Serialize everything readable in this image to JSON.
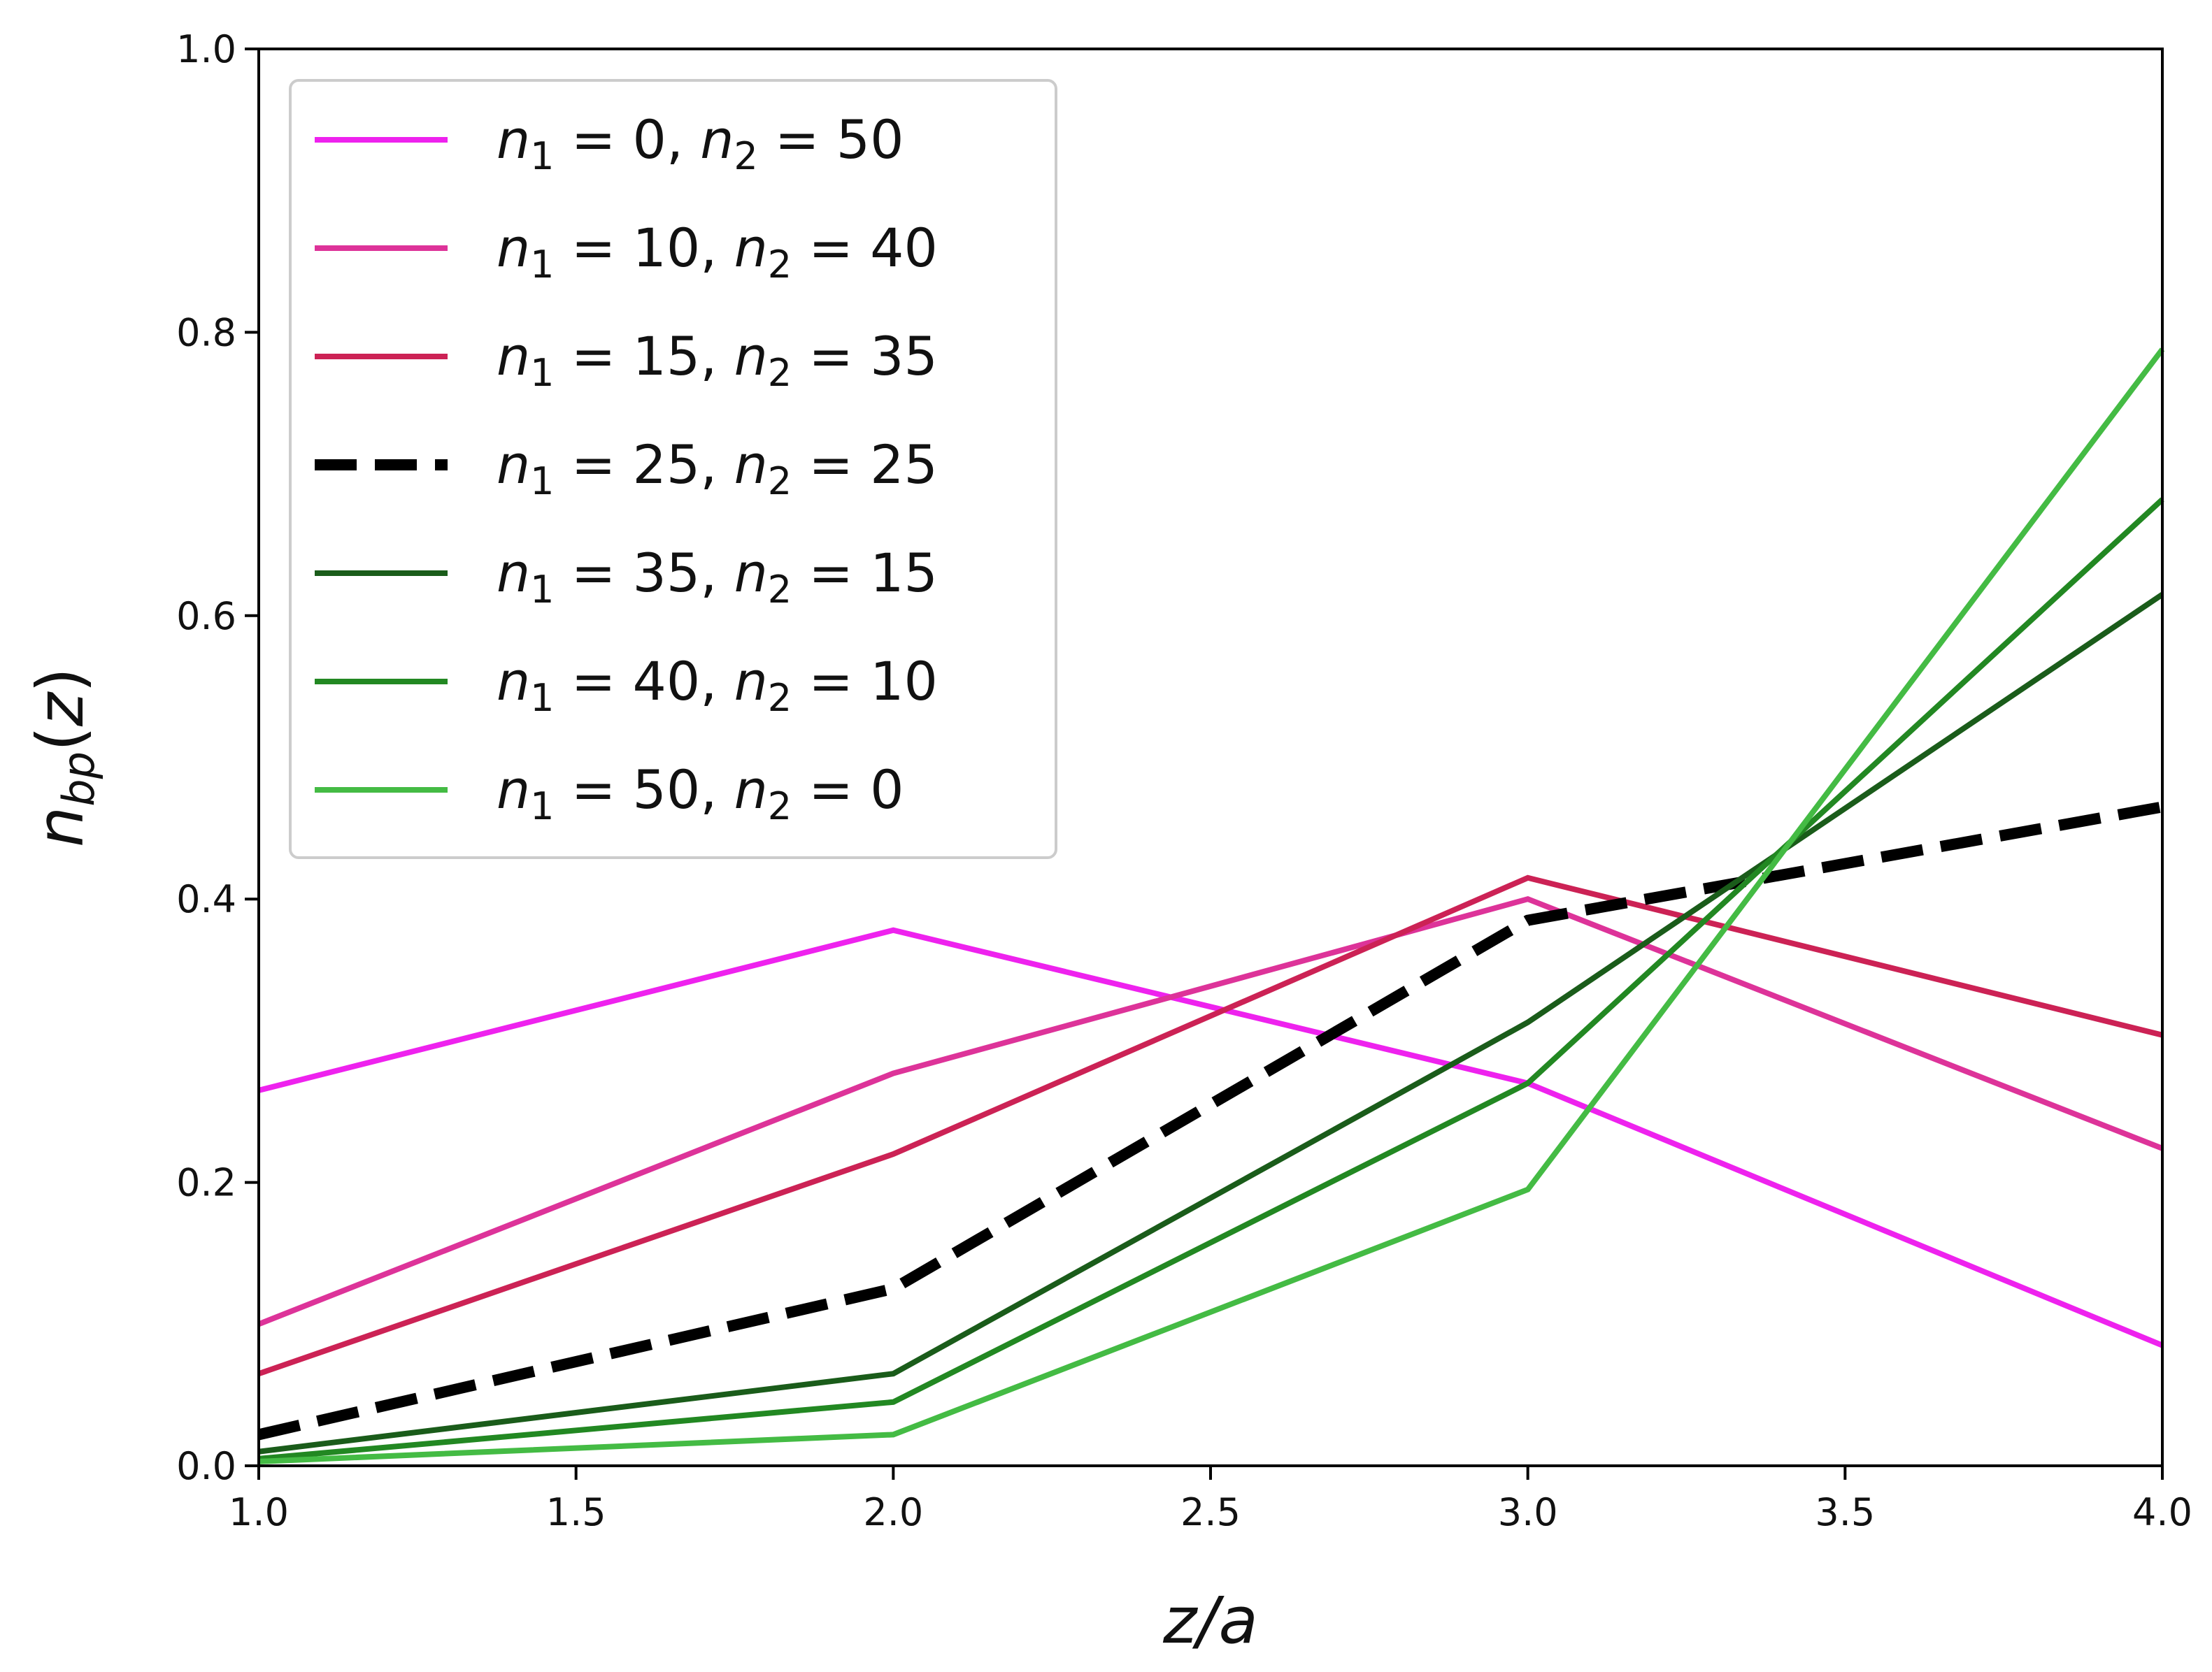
{
  "chart_data": {
    "type": "line",
    "xlabel": "z/a",
    "ylabel": "n_bp(z)",
    "xlim": [
      1.0,
      4.0
    ],
    "ylim": [
      0.0,
      1.0
    ],
    "xticks": [
      "1.0",
      "1.5",
      "2.0",
      "2.5",
      "3.0",
      "3.5",
      "4.0"
    ],
    "yticks": [
      "0.0",
      "0.2",
      "0.4",
      "0.6",
      "0.8",
      "1.0"
    ],
    "grid": false,
    "legend_position": "top-left",
    "x": [
      1,
      2,
      3,
      4
    ],
    "series": [
      {
        "name": "n1 = 0, n2 = 50",
        "n1": "0",
        "n2": "50",
        "color": "#ee22ee",
        "dash": false,
        "values": [
          0.265,
          0.378,
          0.27,
          0.085
        ]
      },
      {
        "name": "n1 = 10, n2 = 40",
        "n1": "10",
        "n2": "40",
        "color": "#dd3399",
        "dash": false,
        "values": [
          0.1,
          0.277,
          0.4,
          0.224
        ]
      },
      {
        "name": "n1 = 15, n2 = 35",
        "n1": "15",
        "n2": "35",
        "color": "#cc2255",
        "dash": false,
        "values": [
          0.065,
          0.22,
          0.415,
          0.304
        ]
      },
      {
        "name": "n1 = 25, n2 = 25",
        "n1": "25",
        "n2": "25",
        "color": "#000000",
        "dash": true,
        "values": [
          0.022,
          0.125,
          0.385,
          0.465
        ]
      },
      {
        "name": "n1 = 35, n2 = 15",
        "n1": "35",
        "n2": "15",
        "color": "#1a5c1a",
        "dash": false,
        "values": [
          0.01,
          0.065,
          0.313,
          0.615
        ]
      },
      {
        "name": "n1 = 40, n2 = 10",
        "n1": "40",
        "n2": "10",
        "color": "#228822",
        "dash": false,
        "values": [
          0.005,
          0.045,
          0.27,
          0.682
        ]
      },
      {
        "name": "n1 = 50, n2 = 0",
        "n1": "50",
        "n2": "0",
        "color": "#44bb44",
        "dash": false,
        "values": [
          0.003,
          0.022,
          0.195,
          0.788
        ]
      }
    ]
  }
}
